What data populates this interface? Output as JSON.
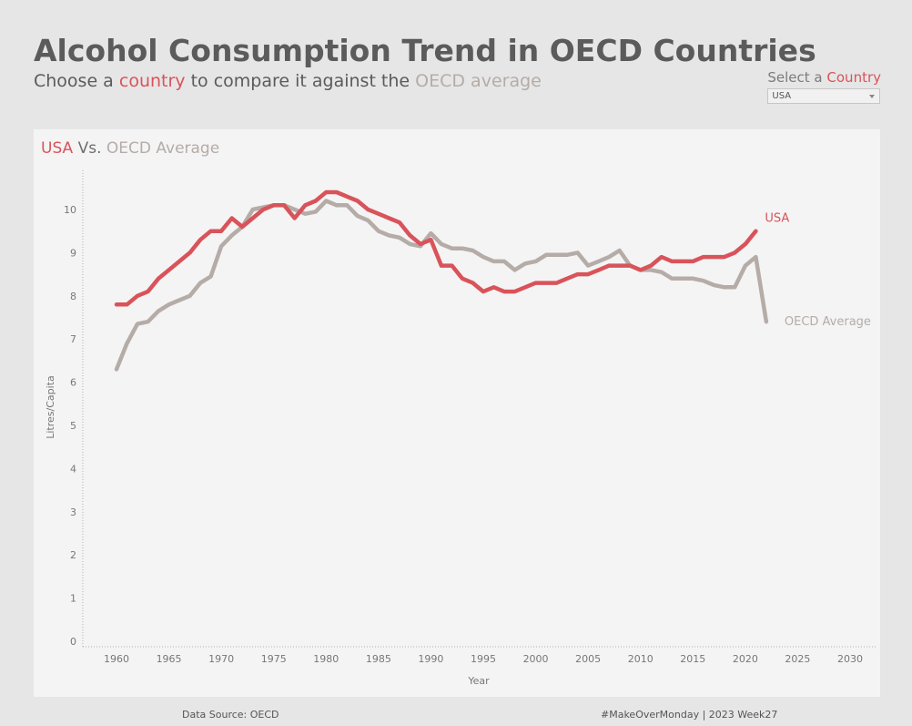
{
  "header": {
    "title": "Alcohol Consumption Trend in OECD Countries",
    "subtitle_pre": "Choose a ",
    "subtitle_country": "country",
    "subtitle_mid": " to compare it against the ",
    "subtitle_oecd": "OECD average"
  },
  "selector": {
    "label_pre": "Select a ",
    "label_country": "Country",
    "value": "USA"
  },
  "panel": {
    "country": "USA",
    "vs": " Vs. ",
    "avg": "OECD Average"
  },
  "footer": {
    "source": "Data Source: OECD",
    "tag": "#MakeOverMonday | 2023 Week27"
  },
  "colors": {
    "usa": "#d9535a",
    "oecd": "#b5aca8"
  },
  "chart_data": {
    "type": "line",
    "title": "USA Vs. OECD Average",
    "xlabel": "Year",
    "ylabel": "Litres/Capita",
    "xlim": [
      1955,
      2032
    ],
    "ylim": [
      0,
      10.8
    ],
    "xticks": [
      1960,
      1965,
      1970,
      1975,
      1980,
      1985,
      1990,
      1995,
      2000,
      2005,
      2010,
      2015,
      2020,
      2025,
      2030
    ],
    "yticks": [
      0,
      1,
      2,
      3,
      4,
      5,
      6,
      7,
      8,
      9,
      10
    ],
    "series": [
      {
        "name": "USA",
        "label": "USA",
        "color": "#d9535a",
        "x": [
          1960,
          1961,
          1962,
          1963,
          1964,
          1965,
          1966,
          1967,
          1968,
          1969,
          1970,
          1971,
          1972,
          1973,
          1974,
          1975,
          1976,
          1977,
          1978,
          1979,
          1980,
          1981,
          1982,
          1983,
          1984,
          1985,
          1986,
          1987,
          1988,
          1989,
          1990,
          1991,
          1992,
          1993,
          1994,
          1995,
          1996,
          1997,
          1998,
          1999,
          2000,
          2001,
          2002,
          2003,
          2004,
          2005,
          2006,
          2007,
          2008,
          2009,
          2010,
          2011,
          2012,
          2013,
          2014,
          2015,
          2016,
          2017,
          2018,
          2019,
          2020,
          2021
        ],
        "y": [
          7.8,
          7.8,
          8.0,
          8.1,
          8.4,
          8.6,
          8.8,
          9.0,
          9.3,
          9.5,
          9.5,
          9.8,
          9.6,
          9.8,
          10.0,
          10.1,
          10.1,
          9.8,
          10.1,
          10.2,
          10.4,
          10.4,
          10.3,
          10.2,
          10.0,
          9.9,
          9.8,
          9.7,
          9.4,
          9.2,
          9.3,
          8.7,
          8.7,
          8.4,
          8.3,
          8.1,
          8.2,
          8.1,
          8.1,
          8.2,
          8.3,
          8.3,
          8.3,
          8.4,
          8.5,
          8.5,
          8.6,
          8.7,
          8.7,
          8.7,
          8.6,
          8.7,
          8.9,
          8.8,
          8.8,
          8.8,
          8.9,
          8.9,
          8.9,
          9.0,
          9.2,
          9.5
        ]
      },
      {
        "name": "OECD Average",
        "label": "OECD Average",
        "color": "#b5aca8",
        "x": [
          1960,
          1961,
          1962,
          1963,
          1964,
          1965,
          1966,
          1967,
          1968,
          1969,
          1970,
          1971,
          1972,
          1973,
          1974,
          1975,
          1976,
          1977,
          1978,
          1979,
          1980,
          1981,
          1982,
          1983,
          1984,
          1985,
          1986,
          1987,
          1988,
          1989,
          1990,
          1991,
          1992,
          1993,
          1994,
          1995,
          1996,
          1997,
          1998,
          1999,
          2000,
          2001,
          2002,
          2003,
          2004,
          2005,
          2006,
          2007,
          2008,
          2009,
          2010,
          2011,
          2012,
          2013,
          2014,
          2015,
          2016,
          2017,
          2018,
          2019,
          2020,
          2021,
          2022
        ],
        "y": [
          6.3,
          6.9,
          7.35,
          7.4,
          7.65,
          7.8,
          7.9,
          8.0,
          8.3,
          8.45,
          9.15,
          9.4,
          9.6,
          10.0,
          10.05,
          10.1,
          10.1,
          10.0,
          9.9,
          9.95,
          10.2,
          10.1,
          10.1,
          9.85,
          9.75,
          9.5,
          9.4,
          9.35,
          9.2,
          9.15,
          9.45,
          9.2,
          9.1,
          9.1,
          9.05,
          8.9,
          8.8,
          8.8,
          8.6,
          8.75,
          8.8,
          8.95,
          8.95,
          8.95,
          9.0,
          8.7,
          8.8,
          8.9,
          9.05,
          8.7,
          8.6,
          8.6,
          8.55,
          8.4,
          8.4,
          8.4,
          8.35,
          8.25,
          8.2,
          8.2,
          8.7,
          8.9,
          7.4
        ]
      }
    ]
  }
}
